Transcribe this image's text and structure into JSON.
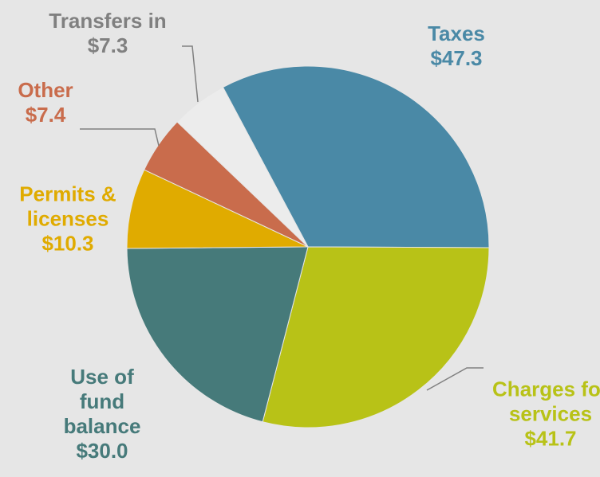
{
  "chart_data": {
    "type": "pie",
    "categories": [
      "Taxes",
      "Charges for services",
      "Use of fund balance",
      "Permits & licenses",
      "Other",
      "Transfers in"
    ],
    "values": [
      47.3,
      41.7,
      30.0,
      10.3,
      7.4,
      7.3
    ],
    "value_labels": [
      "$47.3",
      "$41.7",
      "$30.0",
      "$10.3",
      "$7.4",
      "$7.3"
    ],
    "colors": [
      "#4a89a6",
      "#b8c217",
      "#467a7a",
      "#e0ab00",
      "#c96c4c",
      "#ececec"
    ],
    "label_colors": [
      "#4a89a6",
      "#b8c217",
      "#467a7a",
      "#e0ab00",
      "#c96c4c",
      "#808080"
    ]
  }
}
